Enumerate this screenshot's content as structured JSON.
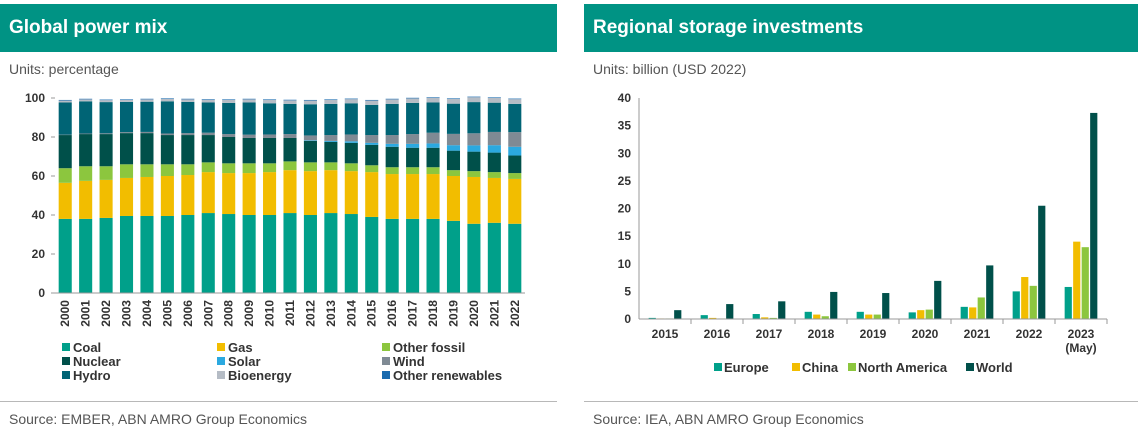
{
  "left": {
    "title": "Global power mix",
    "units": "Units: percentage",
    "source": "Source: EMBER, ABN AMRO Group Economics"
  },
  "right": {
    "title": "Regional storage investments",
    "units": "Units: billion (USD 2022)",
    "source": "Source: IEA, ABN AMRO Group Economics"
  },
  "chart_data": [
    {
      "type": "bar",
      "stacked": true,
      "title": "Global power mix",
      "units": "Units: percentage",
      "ylim": [
        0,
        100
      ],
      "yticks": [
        0,
        20,
        40,
        60,
        80,
        100
      ],
      "grid": false,
      "legend_position": "bottom",
      "categories": [
        "2000",
        "2001",
        "2002",
        "2003",
        "2004",
        "2005",
        "2006",
        "2007",
        "2008",
        "2009",
        "2010",
        "2011",
        "2012",
        "2013",
        "2014",
        "2015",
        "2016",
        "2017",
        "2018",
        "2019",
        "2020",
        "2021",
        "2022"
      ],
      "series": [
        {
          "name": "Coal",
          "color": "#00a08a",
          "values": [
            38,
            38,
            38.5,
            39.5,
            39.5,
            39.5,
            40,
            41,
            40.5,
            40,
            40,
            41,
            40,
            41,
            40.5,
            39,
            38,
            38,
            38,
            37,
            35.5,
            36,
            35.5
          ]
        },
        {
          "name": "Gas",
          "color": "#f2bd00",
          "values": [
            18.5,
            19.5,
            19.5,
            19.5,
            20,
            20.5,
            20.5,
            21,
            21,
            21.5,
            22,
            22,
            22.5,
            22,
            22,
            23,
            23,
            23,
            23,
            23,
            24,
            23,
            23
          ]
        },
        {
          "name": "Other fossil",
          "color": "#8cc63e",
          "values": [
            7.5,
            7.5,
            7,
            7,
            6.5,
            6,
            5.5,
            5,
            5,
            5,
            4.5,
            4.5,
            4.5,
            4,
            4,
            3.5,
            3.5,
            3.5,
            3.5,
            3,
            3,
            3,
            3
          ]
        },
        {
          "name": "Nuclear",
          "color": "#00504a",
          "values": [
            17,
            16.5,
            16.5,
            16,
            16,
            15,
            15,
            14,
            13.5,
            13,
            13,
            12,
            11,
            10.5,
            10.5,
            10.5,
            10.5,
            10,
            10,
            10,
            10,
            10,
            9
          ]
        },
        {
          "name": "Solar",
          "color": "#2ba9e0",
          "values": [
            0,
            0,
            0,
            0,
            0,
            0,
            0,
            0,
            0,
            0,
            0,
            0,
            0.3,
            0.5,
            0.8,
            1,
            1.5,
            2,
            2.2,
            2.8,
            3.2,
            3.8,
            4.5
          ]
        },
        {
          "name": "Wind",
          "color": "#7f8a94",
          "values": [
            0.2,
            0.3,
            0.4,
            0.5,
            0.6,
            0.8,
            1,
            1.2,
            1.5,
            1.7,
            1.8,
            2,
            2.5,
            3,
            3.5,
            4,
            4.5,
            5,
            5.5,
            5.8,
            6.2,
            6.8,
            7.5
          ]
        },
        {
          "name": "Hydro",
          "color": "#006475",
          "values": [
            16.5,
            16.5,
            16,
            15.5,
            15.5,
            16.5,
            16,
            15.5,
            16,
            16.5,
            16,
            15.5,
            16,
            16,
            16,
            15.5,
            16,
            16,
            15.5,
            15.5,
            16,
            15,
            14.5
          ]
        },
        {
          "name": "Bioenergy",
          "color": "#b5bcc5",
          "values": [
            1,
            1,
            1,
            1,
            1.2,
            1.2,
            1.3,
            1.4,
            1.5,
            1.6,
            1.7,
            1.8,
            1.9,
            2,
            2.1,
            2.2,
            2.3,
            2.3,
            2.4,
            2.4,
            2.5,
            2.4,
            2.4
          ]
        },
        {
          "name": "Other renewables",
          "color": "#1a6baf",
          "values": [
            0.3,
            0.3,
            0.3,
            0.3,
            0.3,
            0.3,
            0.3,
            0.3,
            0.3,
            0.3,
            0.3,
            0.3,
            0.3,
            0.3,
            0.3,
            0.3,
            0.3,
            0.3,
            0.3,
            0.3,
            0.3,
            0.3,
            0.3
          ]
        }
      ]
    },
    {
      "type": "bar",
      "stacked": false,
      "title": "Regional storage investments",
      "units": "Units: billion (USD 2022)",
      "ylim": [
        0,
        40
      ],
      "yticks": [
        0,
        5,
        10,
        15,
        20,
        25,
        30,
        35,
        40
      ],
      "grid": false,
      "legend_position": "bottom",
      "categories": [
        [
          "2015"
        ],
        [
          "2016"
        ],
        [
          "2017"
        ],
        [
          "2018"
        ],
        [
          "2019"
        ],
        [
          "2020"
        ],
        [
          "2021"
        ],
        [
          "2022"
        ],
        [
          "2023",
          "(May)"
        ]
      ],
      "series": [
        {
          "name": "Europe",
          "color": "#00a08a",
          "values": [
            0.2,
            0.7,
            0.9,
            1.3,
            1.3,
            1.2,
            2.2,
            5,
            5.8
          ]
        },
        {
          "name": "China",
          "color": "#f2bd00",
          "values": [
            0.1,
            0.2,
            0.3,
            0.8,
            0.8,
            1.6,
            2.1,
            7.6,
            14
          ]
        },
        {
          "name": "North America",
          "color": "#8cc63e",
          "values": [
            0.1,
            0.1,
            0.2,
            0.5,
            0.8,
            1.7,
            3.9,
            6,
            13
          ]
        },
        {
          "name": "World",
          "color": "#00504a",
          "values": [
            1.6,
            2.7,
            3.2,
            4.9,
            4.7,
            6.9,
            9.7,
            20.5,
            37.3
          ]
        }
      ]
    }
  ]
}
